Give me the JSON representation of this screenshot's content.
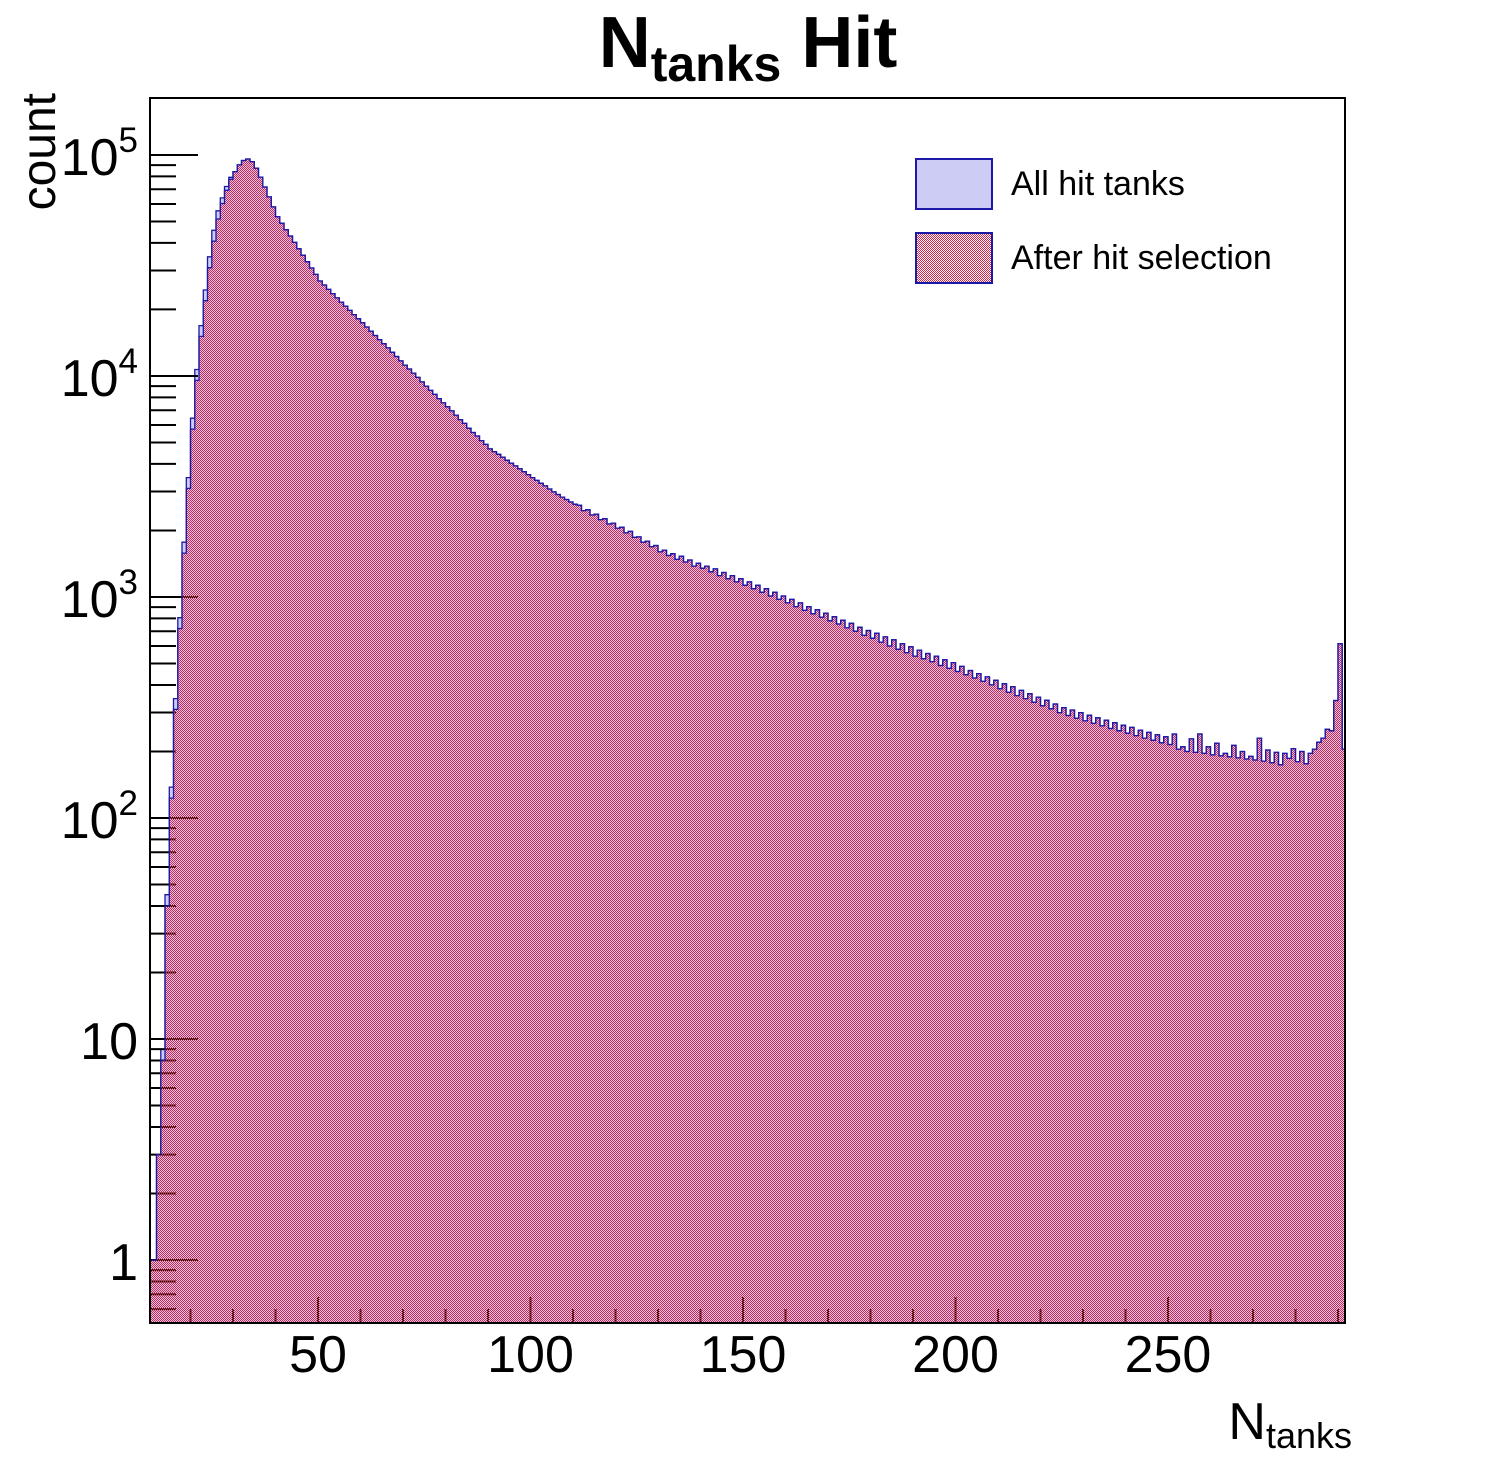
{
  "title": {
    "prefix": "N",
    "sub": "tanks",
    "suffix": " Hit"
  },
  "axes": {
    "y_title": "count",
    "x_title": {
      "prefix": "N",
      "sub": "tanks"
    },
    "x": {
      "min": 10.47,
      "max": 291.65,
      "major_ticks": [
        50,
        100,
        150,
        200,
        250
      ],
      "minor_from": 20,
      "minor_to": 290,
      "minor_step": 10
    },
    "y": {
      "scale": "log",
      "min": 0.519,
      "max": 181000,
      "major_ticks": [
        1,
        10,
        100,
        1000,
        10000,
        100000
      ],
      "major_labels": [
        {
          "text": "1"
        },
        {
          "text": "10"
        },
        {
          "base": "10",
          "exp": "2"
        },
        {
          "base": "10",
          "exp": "3"
        },
        {
          "base": "10",
          "exp": "4"
        },
        {
          "base": "10",
          "exp": "5"
        }
      ]
    }
  },
  "legend": {
    "entries": [
      {
        "label": "All hit tanks",
        "swatch": "solid-blue"
      },
      {
        "label": "After hit selection",
        "swatch": "red-checker"
      }
    ]
  },
  "colors": {
    "blue_fill": "#ccccf5",
    "outline": "#1b19a6",
    "red": "#dc2246",
    "frame": "#000000",
    "text": "#000000",
    "background": "#ffffff"
  },
  "chart_data": {
    "type": "histogram",
    "title": "N_tanks Hit",
    "xlabel": "N_tanks",
    "ylabel": "count",
    "y_scale": "log",
    "xlim": [
      10.47,
      291.65
    ],
    "ylim": [
      0.519,
      181000
    ],
    "bin_start": 10,
    "bin_width": 1,
    "series": [
      {
        "name": "All hit tanks",
        "values": [
          1,
          1,
          3,
          9,
          45,
          138,
          347,
          806,
          1770,
          3470,
          6440,
          10700,
          16900,
          24500,
          34600,
          45600,
          55900,
          63900,
          72000,
          79200,
          84100,
          90200,
          94400,
          95900,
          93300,
          87100,
          79400,
          71600,
          64600,
          58200,
          52500,
          49100,
          45900,
          43000,
          40200,
          37600,
          35200,
          32900,
          30800,
          28800,
          26900,
          25800,
          24650,
          23600,
          22550,
          21600,
          20700,
          19800,
          18950,
          18150,
          17400,
          16650,
          15950,
          15250,
          14600,
          14000,
          13400,
          12800,
          12250,
          11700,
          11200,
          10750,
          10300,
          9850,
          9400,
          9000,
          8600,
          8250,
          7900,
          7550,
          7250,
          6950,
          6650,
          6350,
          6100,
          5800,
          5550,
          5350,
          5100,
          4900,
          4680,
          4550,
          4420,
          4290,
          4160,
          4030,
          3920,
          3800,
          3690,
          3580,
          3470,
          3370,
          3270,
          3180,
          3080,
          2990,
          2910,
          2830,
          2760,
          2690,
          2630,
          2600,
          2460,
          2480,
          2350,
          2370,
          2240,
          2260,
          2140,
          2160,
          2050,
          2070,
          1950,
          1980,
          1860,
          1870,
          1770,
          1790,
          1690,
          1710,
          1600,
          1630,
          1540,
          1570,
          1480,
          1530,
          1440,
          1470,
          1380,
          1420,
          1350,
          1380,
          1300,
          1340,
          1250,
          1290,
          1210,
          1250,
          1170,
          1210,
          1130,
          1170,
          1090,
          1130,
          1050,
          1090,
          1010,
          1050,
          975,
          1010,
          940,
          975,
          905,
          940,
          870,
          905,
          840,
          875,
          810,
          845,
          780,
          815,
          755,
          785,
          725,
          760,
          700,
          730,
          670,
          705,
          650,
          685,
          625,
          660,
          600,
          640,
          580,
          615,
          560,
          595,
          540,
          575,
          525,
          555,
          510,
          540,
          490,
          520,
          475,
          505,
          460,
          485,
          445,
          465,
          430,
          450,
          415,
          435,
          400,
          420,
          385,
          405,
          370,
          393,
          358,
          378,
          347,
          365,
          334,
          352,
          322,
          341,
          312,
          328,
          300,
          316,
          291,
          308,
          283,
          300,
          275,
          292,
          268,
          284,
          261,
          277,
          254,
          270,
          248,
          263,
          242,
          257,
          236,
          250,
          230,
          244,
          225,
          238,
          219,
          233,
          215,
          240,
          205,
          210,
          200,
          228,
          198,
          240,
          196,
          210,
          193,
          218,
          191,
          196,
          189,
          213,
          187,
          200,
          185,
          190,
          183,
          230,
          181,
          203,
          178,
          198,
          174,
          196,
          186,
          206,
          180,
          200,
          176,
          196,
          205,
          220,
          230,
          252,
          248,
          340,
          615,
          205
        ]
      },
      {
        "name": "After hit selection",
        "values": [
          1,
          1,
          3,
          8,
          40,
          123,
          310,
          720,
          1580,
          3100,
          5750,
          9550,
          15100,
          21900,
          30900,
          40700,
          51300,
          60300,
          69200,
          77600,
          84100,
          90200,
          94400,
          95900,
          93300,
          87100,
          79400,
          71600,
          64600,
          58200,
          52500,
          49100,
          45900,
          43000,
          40200,
          37600,
          35200,
          32900,
          30800,
          28800,
          26900,
          25800,
          24650,
          23600,
          22550,
          21600,
          20700,
          19800,
          18950,
          18150,
          17400,
          16650,
          15950,
          15250,
          14600,
          14000,
          13400,
          12800,
          12250,
          11700,
          11200,
          10750,
          10300,
          9850,
          9400,
          9000,
          8600,
          8250,
          7900,
          7550,
          7250,
          6950,
          6650,
          6350,
          6100,
          5800,
          5550,
          5350,
          5100,
          4900,
          4680,
          4550,
          4420,
          4290,
          4160,
          4030,
          3920,
          3800,
          3690,
          3580,
          3470,
          3370,
          3270,
          3180,
          3080,
          2990,
          2910,
          2830,
          2760,
          2690,
          2630,
          2600,
          2460,
          2480,
          2350,
          2370,
          2240,
          2260,
          2140,
          2160,
          2050,
          2070,
          1950,
          1980,
          1860,
          1870,
          1770,
          1790,
          1690,
          1710,
          1600,
          1630,
          1540,
          1570,
          1480,
          1530,
          1440,
          1470,
          1380,
          1420,
          1350,
          1380,
          1300,
          1340,
          1250,
          1290,
          1210,
          1250,
          1170,
          1210,
          1130,
          1170,
          1090,
          1130,
          1050,
          1090,
          1010,
          1050,
          975,
          1010,
          940,
          975,
          905,
          940,
          870,
          905,
          840,
          875,
          810,
          845,
          780,
          815,
          755,
          785,
          725,
          760,
          700,
          730,
          670,
          705,
          650,
          685,
          625,
          660,
          600,
          640,
          580,
          615,
          560,
          595,
          540,
          575,
          525,
          555,
          510,
          540,
          490,
          520,
          475,
          505,
          460,
          485,
          445,
          465,
          430,
          450,
          415,
          435,
          400,
          420,
          385,
          405,
          370,
          393,
          358,
          378,
          347,
          365,
          334,
          352,
          322,
          341,
          312,
          328,
          300,
          316,
          291,
          308,
          283,
          300,
          275,
          292,
          268,
          284,
          261,
          277,
          254,
          270,
          248,
          263,
          242,
          257,
          236,
          250,
          230,
          244,
          225,
          238,
          219,
          233,
          215,
          240,
          205,
          210,
          200,
          228,
          198,
          240,
          196,
          210,
          193,
          218,
          191,
          196,
          189,
          213,
          187,
          200,
          185,
          190,
          183,
          230,
          181,
          203,
          178,
          198,
          174,
          196,
          186,
          206,
          180,
          200,
          176,
          196,
          205,
          220,
          230,
          252,
          248,
          340,
          615,
          205
        ]
      }
    ]
  }
}
